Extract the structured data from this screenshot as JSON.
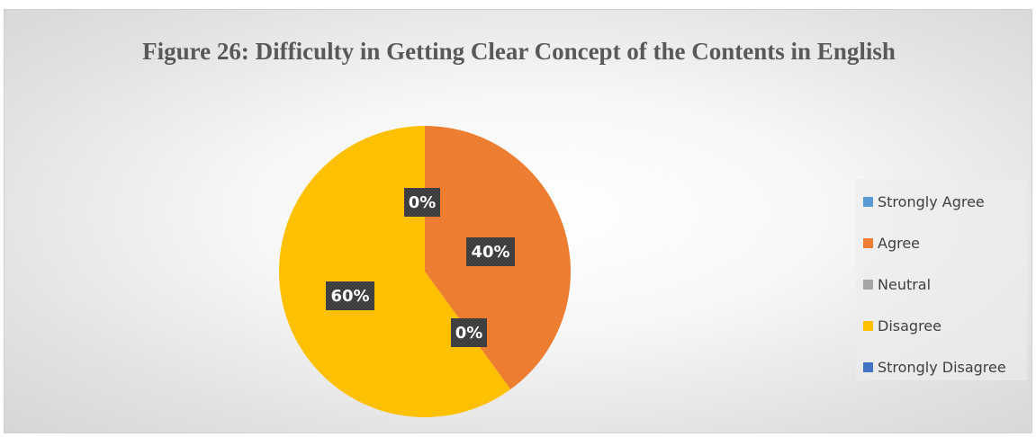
{
  "chart_data": {
    "type": "pie",
    "title": "Figure 26: Difficulty in Getting Clear Concept of the Contents in English",
    "categories": [
      "Strongly Agree",
      "Agree",
      "Neutral",
      "Disagree",
      "Strongly Disagree"
    ],
    "values": [
      0,
      40,
      0,
      60,
      0
    ],
    "data_labels": [
      "0%",
      "40%",
      "0%",
      "60%",
      "0%"
    ],
    "colors": [
      "#5b9bd5",
      "#ed7d31",
      "#a5a5a5",
      "#ffc000",
      "#4472c4"
    ],
    "legend_position": "right"
  }
}
